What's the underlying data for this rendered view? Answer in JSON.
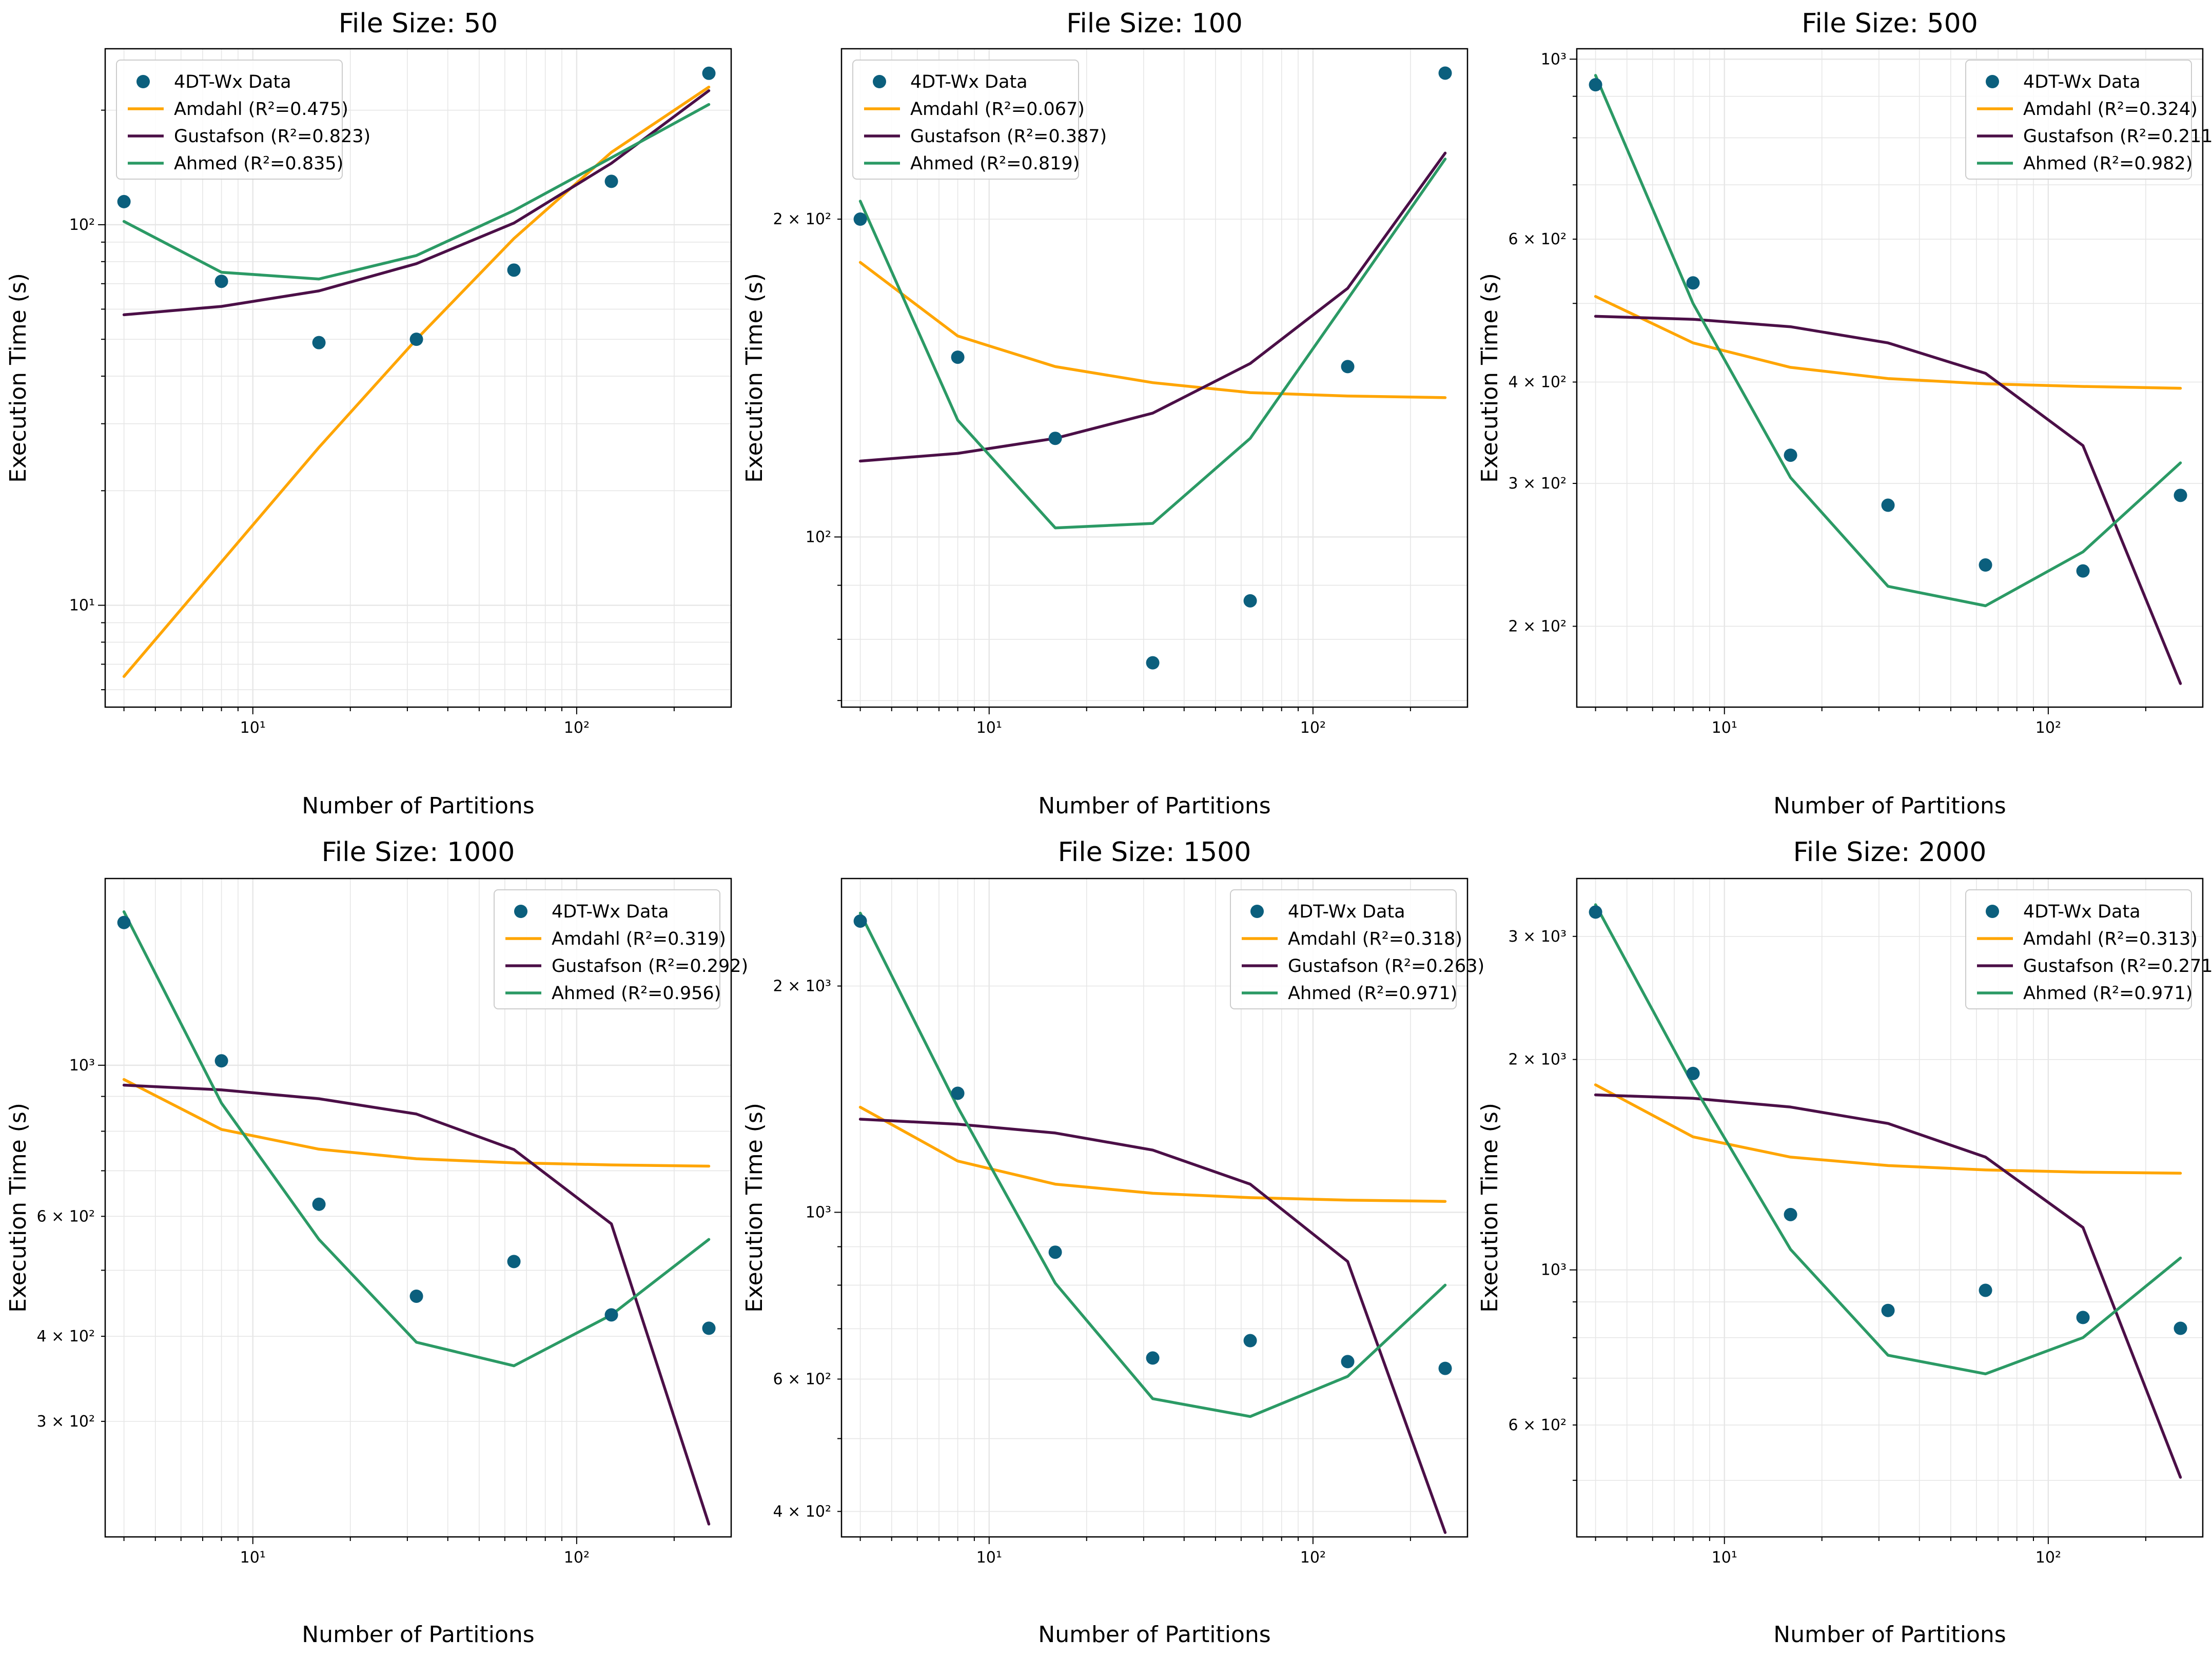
{
  "figure": {
    "colors": {
      "data": "#0b5f7d",
      "amdahl": "#ffa500",
      "gustafson": "#4b0f47",
      "ahmed": "#2b9a65",
      "grid": "#e6e6e6"
    }
  },
  "chart_data": [
    {
      "type": "scatter",
      "title": "File Size: 50",
      "xlabel": "Number of Partitions",
      "ylabel": "Execution Time (s)",
      "xscale": "log",
      "yscale": "log",
      "xlim": [
        3.5,
        300
      ],
      "ylim": [
        5.4,
        290
      ],
      "xticks": [
        {
          "v": 10,
          "label": "10¹"
        },
        {
          "v": 100,
          "label": "10²"
        }
      ],
      "yticks": [
        {
          "v": 10,
          "label": "10¹"
        },
        {
          "v": 100,
          "label": "10²"
        }
      ],
      "legend_loc": "top-left",
      "x": [
        4,
        8,
        16,
        32,
        64,
        128,
        256
      ],
      "scatter": {
        "name": "4DT-Wx Data",
        "values": [
          115,
          71,
          49,
          50,
          76,
          130,
          250
        ]
      },
      "series": [
        {
          "name": "Amdahl (R²=0.475)",
          "key": "amdahl",
          "values": [
            6.5,
            13,
            26,
            50,
            92,
            155,
            230
          ]
        },
        {
          "name": "Gustafson (R²=0.823)",
          "key": "gustafson",
          "values": [
            58,
            61,
            67,
            79,
            101,
            145,
            225
          ]
        },
        {
          "name": "Ahmed (R²=0.835)",
          "key": "ahmed",
          "values": [
            102,
            75,
            72,
            83,
            109,
            150,
            207
          ]
        }
      ]
    },
    {
      "type": "scatter",
      "title": "File Size: 100",
      "xlabel": "Number of Partitions",
      "ylabel": "Execution Time (s)",
      "xscale": "log",
      "yscale": "log",
      "xlim": [
        3.5,
        300
      ],
      "ylim": [
        69,
        290
      ],
      "xticks": [
        {
          "v": 10,
          "label": "10¹"
        },
        {
          "v": 100,
          "label": "10²"
        }
      ],
      "yticks": [
        {
          "v": 100,
          "label": "10²"
        },
        {
          "v": 200,
          "label": "2 × 10²"
        }
      ],
      "legend_loc": "top-left",
      "x": [
        4,
        8,
        16,
        32,
        64,
        128,
        256
      ],
      "scatter": {
        "name": "4DT-Wx Data",
        "values": [
          200,
          148,
          124,
          76,
          87,
          145,
          275
        ]
      },
      "series": [
        {
          "name": "Amdahl (R²=0.067)",
          "key": "amdahl",
          "values": [
            182,
            155,
            145,
            140,
            137,
            136,
            135.5
          ]
        },
        {
          "name": "Gustafson (R²=0.387)",
          "key": "gustafson",
          "values": [
            118,
            120,
            124,
            131,
            146,
            172,
            231
          ]
        },
        {
          "name": "Ahmed (R²=0.819)",
          "key": "ahmed",
          "values": [
            208,
            129,
            102,
            103,
            124,
            168,
            228
          ]
        }
      ]
    },
    {
      "type": "scatter",
      "title": "File Size: 500",
      "xlabel": "Number of Partitions",
      "ylabel": "Execution Time (s)",
      "xscale": "log",
      "yscale": "log",
      "xlim": [
        3.5,
        300
      ],
      "ylim": [
        159,
        1030
      ],
      "xticks": [
        {
          "v": 10,
          "label": "10¹"
        },
        {
          "v": 100,
          "label": "10²"
        }
      ],
      "yticks": [
        {
          "v": 200,
          "label": "2 × 10²"
        },
        {
          "v": 300,
          "label": "3 × 10²"
        },
        {
          "v": 400,
          "label": "4 × 10²"
        },
        {
          "v": 600,
          "label": "6 × 10²"
        },
        {
          "v": 1000,
          "label": "10³"
        }
      ],
      "legend_loc": "top-right",
      "x": [
        4,
        8,
        16,
        32,
        64,
        128,
        256
      ],
      "scatter": {
        "name": "4DT-Wx Data",
        "values": [
          930,
          530,
          325,
          282,
          238,
          234,
          290
        ]
      },
      "series": [
        {
          "name": "Amdahl (R²=0.324)",
          "key": "amdahl",
          "values": [
            510,
            447,
            417,
            404,
            398,
            395,
            393
          ]
        },
        {
          "name": "Gustafson (R²=0.211)",
          "key": "gustafson",
          "values": [
            482,
            478,
            468,
            447,
            410,
            334,
            170
          ]
        },
        {
          "name": "Ahmed (R²=0.982)",
          "key": "ahmed",
          "values": [
            955,
            500,
            305,
            224,
            212,
            247,
            318
          ]
        }
      ]
    },
    {
      "type": "scatter",
      "title": "File Size: 1000",
      "xlabel": "Number of Partitions",
      "ylabel": "Execution Time (s)",
      "xscale": "log",
      "yscale": "log",
      "xlim": [
        3.5,
        300
      ],
      "ylim": [
        203,
        1880
      ],
      "xticks": [
        {
          "v": 10,
          "label": "10¹"
        },
        {
          "v": 100,
          "label": "10²"
        }
      ],
      "yticks": [
        {
          "v": 300,
          "label": "3 × 10²"
        },
        {
          "v": 400,
          "label": "4 × 10²"
        },
        {
          "v": 600,
          "label": "6 × 10²"
        },
        {
          "v": 1000,
          "label": "10³"
        }
      ],
      "legend_loc": "top-right",
      "x": [
        4,
        8,
        16,
        32,
        64,
        128,
        256
      ],
      "scatter": {
        "name": "4DT-Wx Data",
        "values": [
          1620,
          1015,
          625,
          458,
          515,
          430,
          411
        ]
      },
      "series": [
        {
          "name": "Amdahl (R²=0.319)",
          "key": "amdahl",
          "values": [
            953,
            805,
            753,
            729,
            719,
            714,
            711
          ]
        },
        {
          "name": "Gustafson (R²=0.292)",
          "key": "gustafson",
          "values": [
            935,
            920,
            893,
            848,
            752,
            585,
            212
          ]
        },
        {
          "name": "Ahmed (R²=0.956)",
          "key": "ahmed",
          "values": [
            1680,
            880,
            555,
            392,
            362,
            430,
            555
          ]
        }
      ]
    },
    {
      "type": "scatter",
      "title": "File Size: 1500",
      "xlabel": "Number of Partitions",
      "ylabel": "Execution Time (s)",
      "xscale": "log",
      "yscale": "log",
      "xlim": [
        3.5,
        300
      ],
      "ylim": [
        370,
        2780
      ],
      "xticks": [
        {
          "v": 10,
          "label": "10¹"
        },
        {
          "v": 100,
          "label": "10²"
        }
      ],
      "yticks": [
        {
          "v": 400,
          "label": "4 × 10²"
        },
        {
          "v": 600,
          "label": "6 × 10²"
        },
        {
          "v": 1000,
          "label": "10³"
        },
        {
          "v": 2000,
          "label": "2 × 10³"
        }
      ],
      "legend_loc": "top-right",
      "x": [
        4,
        8,
        16,
        32,
        64,
        128,
        256
      ],
      "scatter": {
        "name": "4DT-Wx Data",
        "values": [
          2440,
          1440,
          885,
          640,
          675,
          633,
          620
        ]
      },
      "series": [
        {
          "name": "Amdahl (R²=0.318)",
          "key": "amdahl",
          "values": [
            1380,
            1170,
            1090,
            1060,
            1046,
            1038,
            1034
          ]
        },
        {
          "name": "Gustafson (R²=0.263)",
          "key": "gustafson",
          "values": [
            1330,
            1310,
            1275,
            1210,
            1090,
            860,
            375
          ]
        },
        {
          "name": "Ahmed (R²=0.971)",
          "key": "ahmed",
          "values": [
            2500,
            1380,
            805,
            565,
            535,
            605,
            800
          ]
        }
      ]
    },
    {
      "type": "scatter",
      "title": "File Size: 2000",
      "xlabel": "Number of Partitions",
      "ylabel": "Execution Time (s)",
      "xscale": "log",
      "yscale": "log",
      "xlim": [
        3.5,
        300
      ],
      "ylim": [
        415,
        3630
      ],
      "xticks": [
        {
          "v": 10,
          "label": "10¹"
        },
        {
          "v": 100,
          "label": "10²"
        }
      ],
      "yticks": [
        {
          "v": 600,
          "label": "6 × 10²"
        },
        {
          "v": 1000,
          "label": "10³"
        },
        {
          "v": 2000,
          "label": "2 × 10³"
        },
        {
          "v": 3000,
          "label": "3 × 10³"
        }
      ],
      "legend_loc": "top-right",
      "x": [
        4,
        8,
        16,
        32,
        64,
        128,
        256
      ],
      "scatter": {
        "name": "4DT-Wx Data",
        "values": [
          3250,
          1910,
          1200,
          875,
          935,
          855,
          825
        ]
      },
      "series": [
        {
          "name": "Amdahl (R²=0.313)",
          "key": "amdahl",
          "values": [
            1840,
            1550,
            1450,
            1410,
            1390,
            1380,
            1375
          ]
        },
        {
          "name": "Gustafson (R²=0.271)",
          "key": "gustafson",
          "values": [
            1780,
            1760,
            1710,
            1620,
            1450,
            1150,
            505
          ]
        },
        {
          "name": "Ahmed (R²=0.971)",
          "key": "ahmed",
          "values": [
            3330,
            1840,
            1070,
            755,
            710,
            800,
            1040
          ]
        }
      ]
    }
  ]
}
